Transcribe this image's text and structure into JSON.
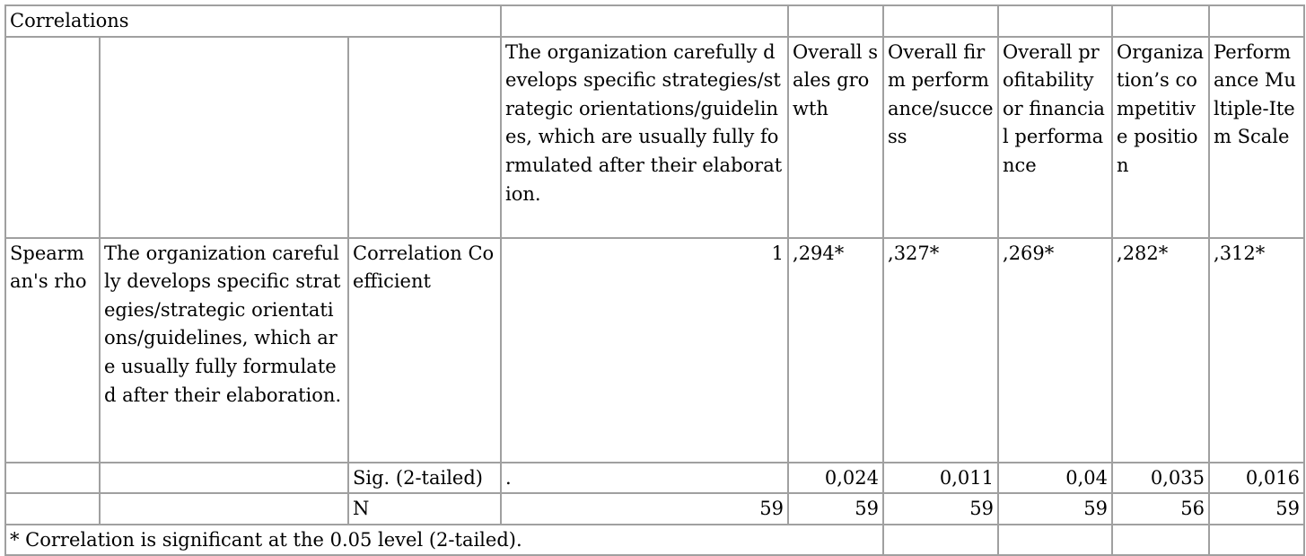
{
  "title": "Correlations",
  "columns": [
    "The organization carefully develops specific strategies/strategic orientations/guidelines, which are usually fully formulated after their elaboration.",
    "Overall sales growth",
    "Overall firm performance/success",
    "Overall profitability or financial performance",
    "Organization’s competitive position",
    "Performance Multiple-Item Scale"
  ],
  "row_group": "Spearman's rho",
  "row_variable": "The organization carefully develops specific strategies/strategic orientations/guidelines, which are usually fully formulated after their elaboration.",
  "rows": {
    "coefficient": {
      "label": "Correlation Coefficient",
      "values": [
        "1",
        ",294*",
        ",327*",
        ",269*",
        ",282*",
        ",312*"
      ]
    },
    "sig": {
      "label": "Sig. (2-tailed)",
      "values": [
        ".",
        "0,024",
        "0,011",
        "0,04",
        "0,035",
        "0,016"
      ]
    },
    "n": {
      "label": "N",
      "values": [
        "59",
        "59",
        "59",
        "59",
        "56",
        "59"
      ]
    }
  },
  "footnote": "* Correlation is significant at the 0.05 level (2-tailed)."
}
